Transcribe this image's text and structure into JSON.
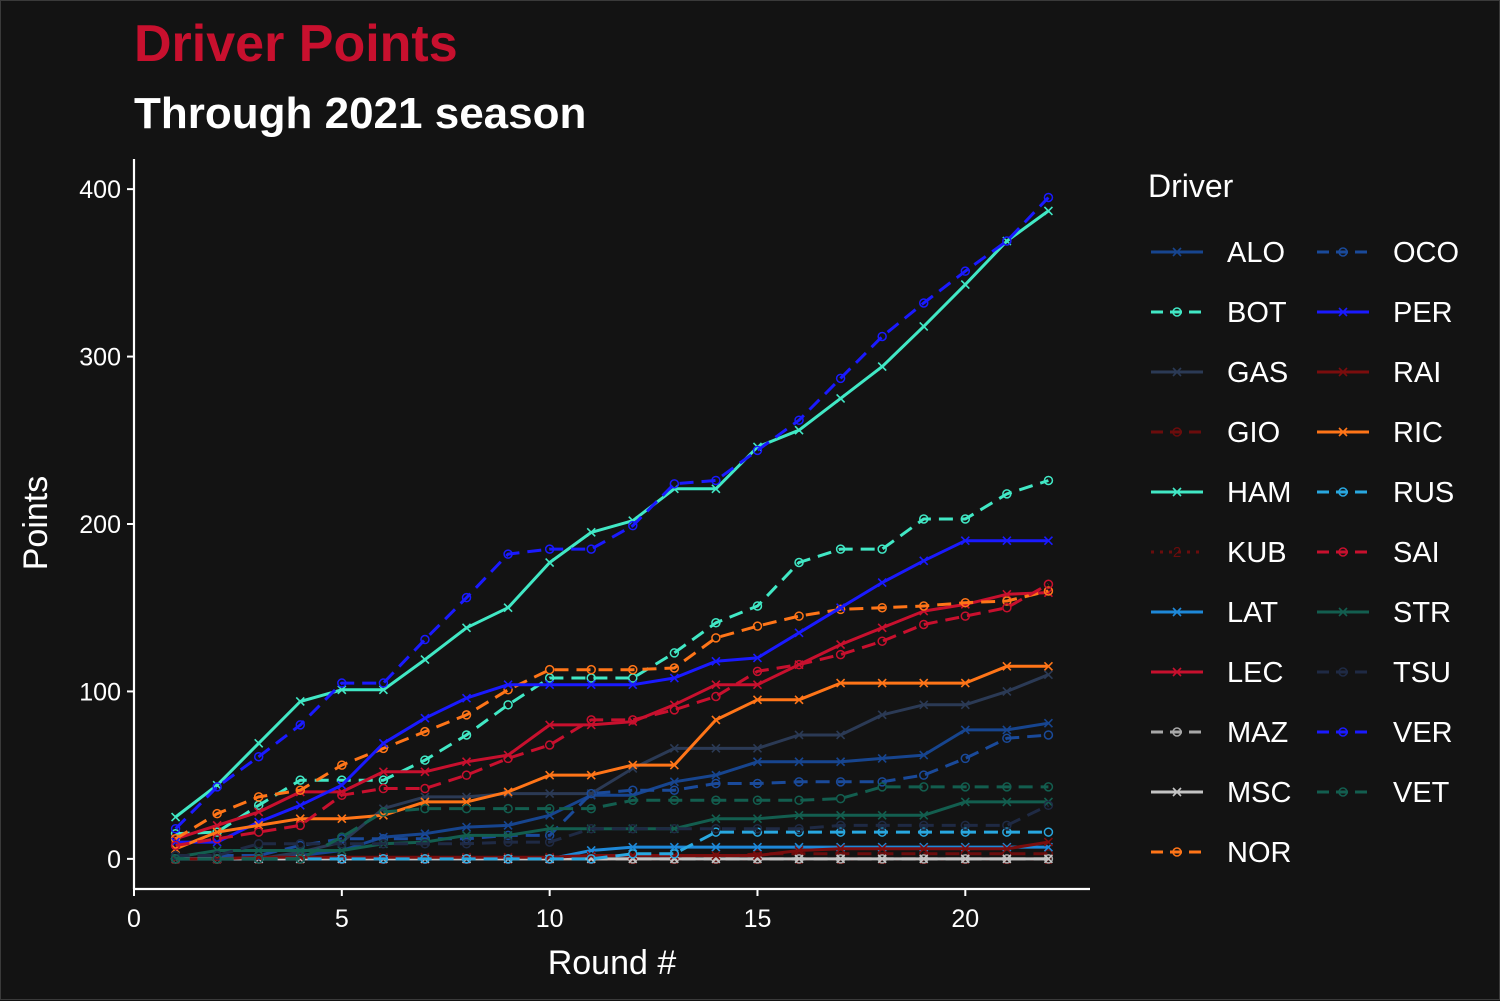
{
  "chart_data": {
    "type": "line",
    "title": "Driver Points",
    "subtitle": "Through 2021 season",
    "xlabel": "Round #",
    "ylabel": "Points",
    "xlim": [
      0,
      23
    ],
    "ylim": [
      -18,
      418
    ],
    "xticks": [
      0,
      5,
      10,
      15,
      20
    ],
    "yticks": [
      0,
      100,
      200,
      300,
      400
    ],
    "grid": false,
    "legend_title": "Driver",
    "legend_position": "right",
    "x": [
      1,
      2,
      3,
      4,
      5,
      6,
      7,
      8,
      9,
      10,
      11,
      12,
      13,
      14,
      15,
      16,
      17,
      18,
      19,
      20,
      21,
      22
    ],
    "series": [
      {
        "name": "ALO",
        "color": "#17458f",
        "dash": "solid",
        "marker": "x",
        "values": [
          0,
          0,
          0,
          2,
          5,
          13,
          15,
          19,
          20,
          26,
          38,
          38,
          46,
          50,
          58,
          58,
          58,
          60,
          62,
          77,
          77,
          81
        ]
      },
      {
        "name": "BOT",
        "color": "#41e8c5",
        "dash": "dashed",
        "marker": "o",
        "values": [
          15,
          16,
          32,
          47,
          47,
          47,
          59,
          74,
          92,
          108,
          108,
          108,
          123,
          141,
          151,
          177,
          185,
          185,
          203,
          203,
          218,
          226
        ]
      },
      {
        "name": "GAS",
        "color": "#2b3a55",
        "dash": "solid",
        "marker": "x",
        "values": [
          0,
          0,
          0,
          4,
          10,
          30,
          37,
          37,
          39,
          39,
          39,
          54,
          66,
          66,
          66,
          74,
          74,
          86,
          92,
          92,
          100,
          110
        ]
      },
      {
        "name": "GIO",
        "color": "#6b0c0c",
        "dash": "dashed",
        "marker": "o",
        "values": [
          0,
          0,
          0,
          0,
          0,
          0,
          0,
          0,
          0,
          0,
          0,
          0,
          0,
          1,
          3,
          3,
          3,
          3,
          3,
          3,
          3,
          3
        ]
      },
      {
        "name": "HAM",
        "color": "#41e8c5",
        "dash": "solid",
        "marker": "x",
        "values": [
          25,
          44,
          69,
          94,
          101,
          101,
          119,
          138,
          150,
          177,
          195,
          202,
          221,
          221,
          246,
          256,
          275,
          294,
          318,
          343,
          369,
          387
        ]
      },
      {
        "name": "KUB",
        "color": "#6b0c0c",
        "dash": "dotted",
        "marker": "2",
        "values": [
          0,
          0,
          0,
          0,
          0,
          0,
          0,
          0,
          0,
          0,
          0,
          0,
          0,
          0,
          0,
          0,
          0,
          0,
          0,
          0,
          0,
          0
        ]
      },
      {
        "name": "LAT",
        "color": "#1e88d8",
        "dash": "solid",
        "marker": "x",
        "values": [
          0,
          0,
          0,
          0,
          0,
          0,
          0,
          0,
          0,
          0,
          5,
          7,
          7,
          7,
          7,
          7,
          7,
          7,
          7,
          7,
          7,
          7
        ]
      },
      {
        "name": "LEC",
        "color": "#c8102e",
        "dash": "solid",
        "marker": "x",
        "values": [
          12,
          20,
          28,
          40,
          40,
          52,
          52,
          58,
          62,
          80,
          80,
          82,
          92,
          104,
          104,
          116,
          128,
          138,
          148,
          152,
          158,
          159
        ]
      },
      {
        "name": "MAZ",
        "color": "#a8a8a8",
        "dash": "dashed",
        "marker": "o",
        "values": [
          0,
          0,
          0,
          0,
          0,
          0,
          0,
          0,
          0,
          0,
          0,
          0,
          0,
          0,
          0,
          0,
          0,
          0,
          0,
          0,
          0,
          0
        ]
      },
      {
        "name": "MSC",
        "color": "#c4c4c4",
        "dash": "solid",
        "marker": "x",
        "values": [
          0,
          0,
          0,
          0,
          0,
          0,
          0,
          0,
          0,
          0,
          0,
          0,
          0,
          0,
          0,
          0,
          0,
          0,
          0,
          0,
          0,
          0
        ]
      },
      {
        "name": "NOR",
        "color": "#ff7518",
        "dash": "dashed",
        "marker": "o",
        "values": [
          12,
          27,
          37,
          41,
          56,
          66,
          76,
          86,
          101,
          113,
          113,
          113,
          114,
          132,
          139,
          145,
          149,
          150,
          151,
          153,
          154,
          160
        ]
      },
      {
        "name": "OCO",
        "color": "#1a4a9a",
        "dash": "dashed",
        "marker": "o",
        "values": [
          2,
          2,
          2,
          8,
          12,
          12,
          12,
          12,
          14,
          14,
          39,
          41,
          41,
          45,
          45,
          46,
          46,
          46,
          50,
          60,
          72,
          74
        ]
      },
      {
        "name": "PER",
        "color": "#1a1aff",
        "dash": "solid",
        "marker": "x",
        "values": [
          10,
          10,
          22,
          32,
          44,
          69,
          84,
          96,
          104,
          104,
          104,
          104,
          108,
          118,
          120,
          135,
          150,
          165,
          178,
          190,
          190,
          190
        ]
      },
      {
        "name": "RAI",
        "color": "#7a0d0d",
        "dash": "solid",
        "marker": "x",
        "values": [
          0,
          0,
          1,
          1,
          1,
          1,
          1,
          1,
          1,
          1,
          2,
          2,
          2,
          2,
          2,
          5,
          6,
          6,
          6,
          6,
          6,
          10
        ]
      },
      {
        "name": "RIC",
        "color": "#ff7518",
        "dash": "solid",
        "marker": "x",
        "values": [
          6,
          16,
          20,
          24,
          24,
          26,
          34,
          34,
          40,
          50,
          50,
          56,
          56,
          83,
          95,
          95,
          105,
          105,
          105,
          105,
          115,
          115
        ]
      },
      {
        "name": "RUS",
        "color": "#29a8e0",
        "dash": "dashed",
        "marker": "o",
        "values": [
          0,
          0,
          0,
          0,
          0,
          0,
          0,
          0,
          0,
          0,
          0,
          3,
          3,
          16,
          16,
          16,
          16,
          16,
          16,
          16,
          16,
          16
        ]
      },
      {
        "name": "SAI",
        "color": "#c8102e",
        "dash": "dashed",
        "marker": "o",
        "values": [
          8,
          12,
          16,
          20,
          38,
          42,
          42,
          50,
          60,
          68,
          83,
          83,
          89,
          97,
          112,
          116,
          122,
          130,
          140,
          145,
          150,
          164
        ]
      },
      {
        "name": "STR",
        "color": "#135e4f",
        "dash": "solid",
        "marker": "x",
        "values": [
          1,
          5,
          5,
          5,
          5,
          9,
          10,
          14,
          14,
          18,
          18,
          18,
          18,
          24,
          24,
          26,
          26,
          26,
          26,
          34,
          34,
          34
        ]
      },
      {
        "name": "TSU",
        "color": "#1f2a44",
        "dash": "dashed",
        "marker": "o",
        "values": [
          2,
          2,
          9,
          9,
          9,
          9,
          9,
          9,
          10,
          10,
          18,
          18,
          18,
          18,
          18,
          18,
          20,
          20,
          20,
          20,
          20,
          32
        ]
      },
      {
        "name": "VER",
        "color": "#1a1aff",
        "dash": "dashed",
        "marker": "o",
        "values": [
          18,
          43,
          61,
          80,
          105,
          105,
          131,
          156,
          182,
          185,
          185,
          199,
          224,
          226,
          244,
          262,
          287,
          312,
          332,
          351,
          369,
          395
        ]
      },
      {
        "name": "VET",
        "color": "#135e4f",
        "dash": "dashed",
        "marker": "o",
        "values": [
          0,
          0,
          0,
          0,
          13,
          28,
          30,
          30,
          30,
          30,
          30,
          35,
          35,
          35,
          35,
          35,
          36,
          43,
          43,
          43,
          43,
          43
        ]
      }
    ]
  }
}
